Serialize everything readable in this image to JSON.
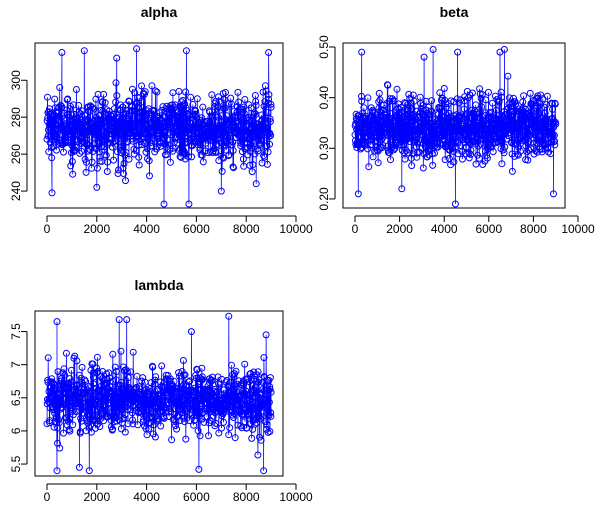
{
  "chart_data": [
    {
      "type": "line",
      "title": "alpha",
      "xlabel": "",
      "ylabel": "",
      "x_range": [
        0,
        9000
      ],
      "xlim": [
        0,
        10000
      ],
      "ylim": [
        233,
        318
      ],
      "x_ticks": [
        0,
        2000,
        4000,
        6000,
        8000,
        10000
      ],
      "y_ticks": [
        240,
        260,
        280,
        300
      ],
      "center": 274,
      "spread": 9,
      "outliers": [
        [
          4700,
          233
        ],
        [
          5700,
          233
        ],
        [
          200,
          239
        ],
        [
          2000,
          242
        ],
        [
          7000,
          240
        ],
        [
          8400,
          244
        ],
        [
          600,
          315
        ],
        [
          1500,
          316
        ],
        [
          3600,
          317
        ],
        [
          5600,
          316
        ],
        [
          8900,
          315
        ],
        [
          2800,
          312
        ]
      ],
      "marker": "open-circle",
      "connect_lines": true,
      "color": "#0000ff",
      "grid": false
    },
    {
      "type": "line",
      "title": "beta",
      "xlabel": "",
      "ylabel": "",
      "x_range": [
        0,
        9000
      ],
      "xlim": [
        0,
        10000
      ],
      "ylim": [
        0.19,
        0.5
      ],
      "x_ticks": [
        0,
        2000,
        4000,
        6000,
        8000,
        10000
      ],
      "y_ticks": [
        0.2,
        0.3,
        0.4,
        0.5
      ],
      "center": 0.34,
      "spread": 0.032,
      "outliers": [
        [
          150,
          0.21
        ],
        [
          4500,
          0.19
        ],
        [
          8900,
          0.21
        ],
        [
          2100,
          0.22
        ],
        [
          300,
          0.49
        ],
        [
          3500,
          0.495
        ],
        [
          4600,
          0.49
        ],
        [
          6700,
          0.495
        ],
        [
          6500,
          0.49
        ],
        [
          3100,
          0.48
        ]
      ],
      "marker": "open-circle",
      "connect_lines": true,
      "color": "#0000ff",
      "grid": false
    },
    {
      "type": "line",
      "title": "lambda",
      "xlabel": "",
      "ylabel": "",
      "x_range": [
        0,
        9000
      ],
      "xlim": [
        0,
        10000
      ],
      "ylim": [
        5.38,
        7.75
      ],
      "x_ticks": [
        0,
        2000,
        4000,
        6000,
        8000,
        10000
      ],
      "y_ticks": [
        5.5,
        6.0,
        6.5,
        7.0,
        7.5
      ],
      "center": 6.45,
      "spread": 0.25,
      "outliers": [
        [
          400,
          5.4
        ],
        [
          1700,
          5.4
        ],
        [
          6100,
          5.42
        ],
        [
          8700,
          5.4
        ],
        [
          1300,
          5.45
        ],
        [
          400,
          7.65
        ],
        [
          2900,
          7.68
        ],
        [
          3200,
          7.68
        ],
        [
          7300,
          7.73
        ],
        [
          8800,
          7.45
        ],
        [
          5800,
          7.5
        ]
      ],
      "marker": "open-circle",
      "connect_lines": true,
      "color": "#0000ff",
      "grid": false
    }
  ]
}
